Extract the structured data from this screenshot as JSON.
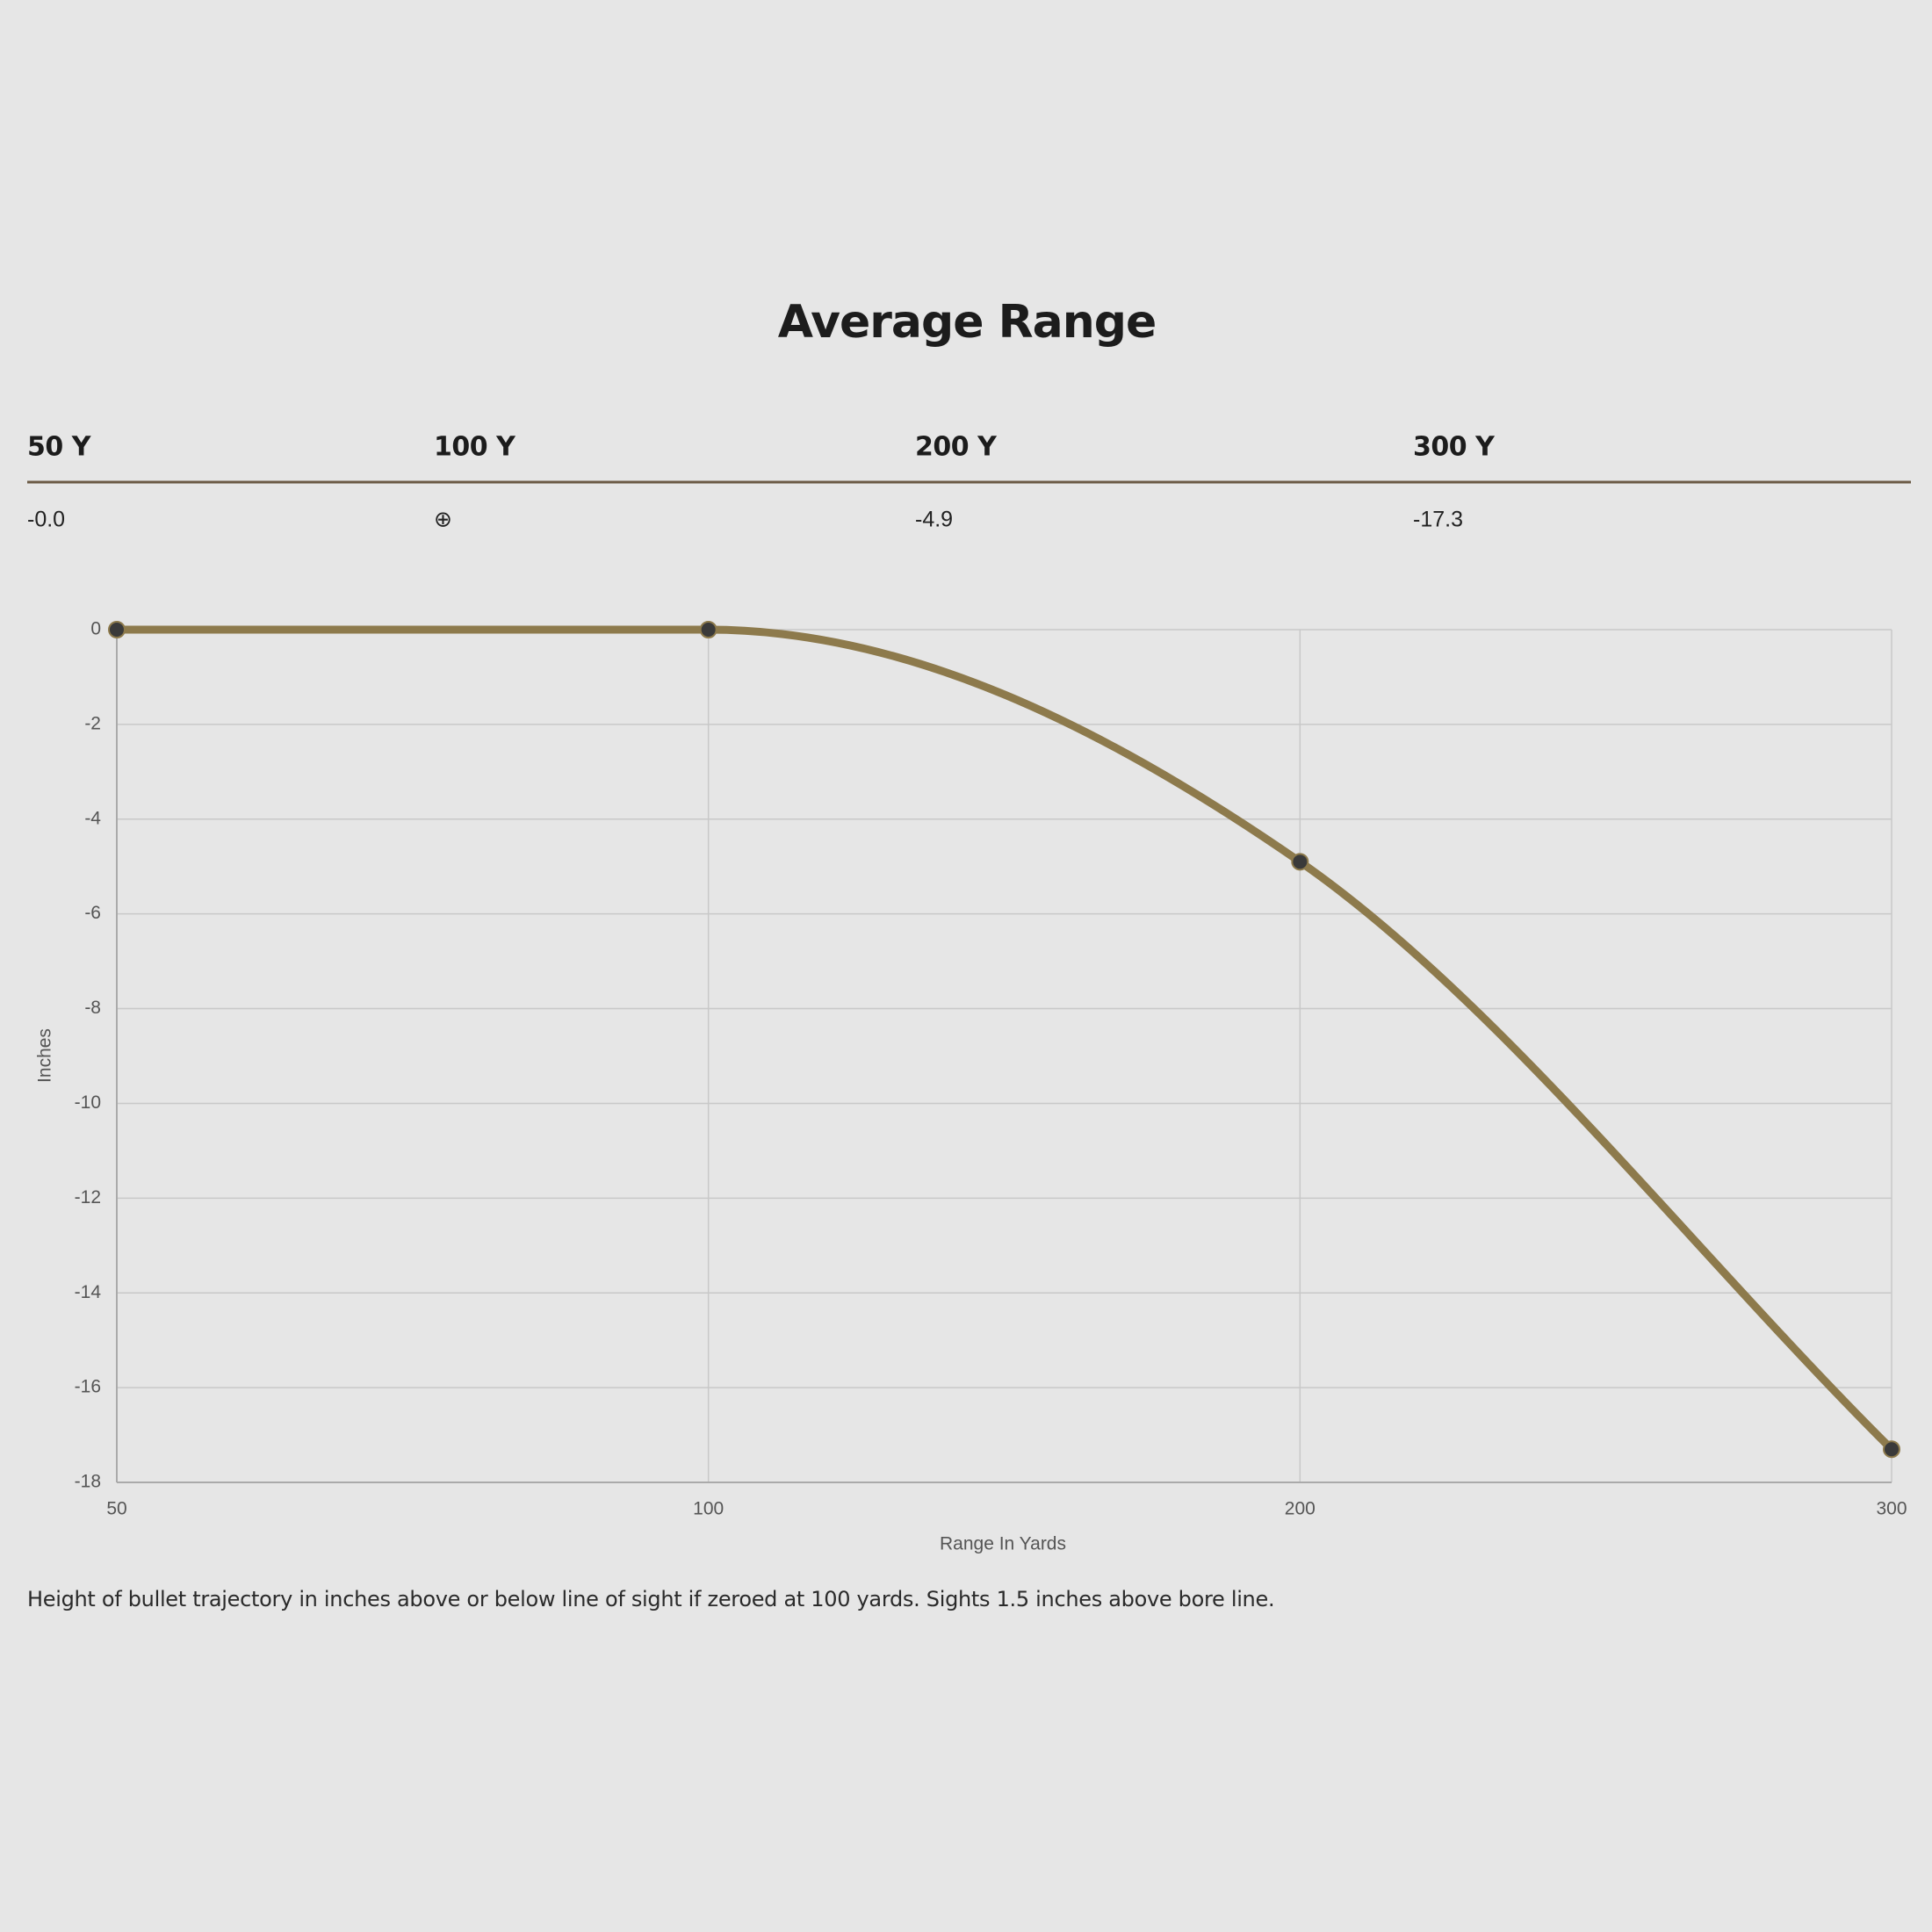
{
  "title": "Average Range",
  "table": {
    "headers": [
      "50 Y",
      "100 Y",
      "200 Y",
      "300 Y"
    ],
    "cells": [
      "-0.0",
      "⊕",
      "-4.9",
      "-17.3"
    ]
  },
  "chart_data": {
    "type": "line",
    "categories": [
      "50",
      "100",
      "200",
      "300"
    ],
    "series": [
      {
        "color": "#8d7a4c",
        "values": [
          0,
          0,
          -4.9,
          -17.3
        ]
      }
    ],
    "ylim": [
      -18,
      0
    ],
    "yticks": [
      0,
      -2,
      -4,
      -6,
      -8,
      -10,
      -12,
      -14,
      -16,
      -18
    ],
    "ylabel": "Inches",
    "xlabel": "Range In Yards",
    "grid": true
  },
  "caption": "Height of bullet trajectory in inches above or below line of sight if zeroed at 100 yards. Sights 1.5 inches above bore line."
}
